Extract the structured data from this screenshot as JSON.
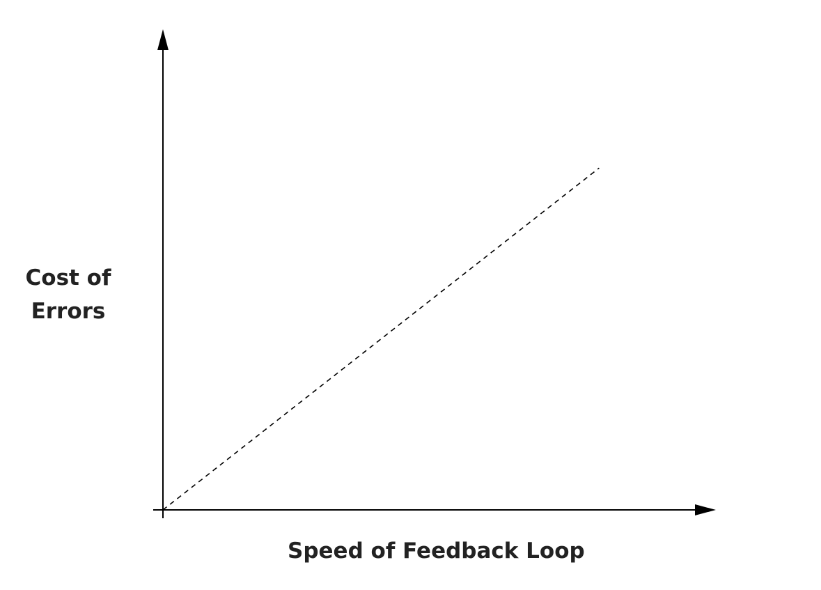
{
  "chart_data": {
    "type": "line",
    "title": "",
    "xlabel": "Speed of Feedback Loop",
    "ylabel": "Cost of Errors",
    "xlim": [
      0,
      1
    ],
    "ylim": [
      0,
      1
    ],
    "grid": false,
    "legend": "none",
    "series": [
      {
        "style": "dashed",
        "color": "#000000",
        "x": [
          0,
          0.9
        ],
        "y": [
          0,
          0.88
        ]
      }
    ]
  }
}
